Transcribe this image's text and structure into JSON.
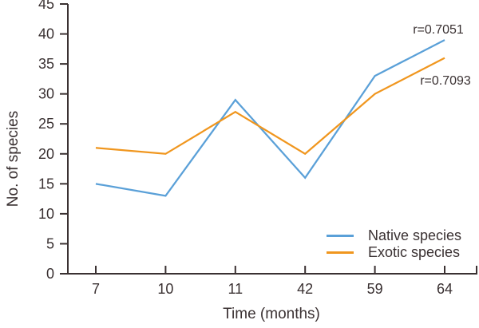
{
  "figure": {
    "background": "#ffffff",
    "text_color": "#3A3132"
  },
  "chart_data": {
    "type": "line",
    "title": "",
    "xlabel": "Time (months)",
    "ylabel": "No. of species",
    "categories": [
      "7",
      "10",
      "11",
      "42",
      "59",
      "64"
    ],
    "series": [
      {
        "name": "Native species",
        "color": "#5AA0D8",
        "values": [
          15,
          13,
          29,
          16,
          33,
          39
        ],
        "annotation": "r=0.7051"
      },
      {
        "name": "Exotic species",
        "color": "#F0961E",
        "values": [
          21,
          20,
          27,
          20,
          30,
          36
        ],
        "annotation": "r=0.7093"
      }
    ],
    "y_ticks": [
      0,
      5,
      10,
      15,
      20,
      25,
      30,
      35,
      40,
      45
    ],
    "ylim": [
      0,
      45
    ],
    "grid": false,
    "legend_position": "lower-right",
    "axis_color": "#3A3132"
  }
}
